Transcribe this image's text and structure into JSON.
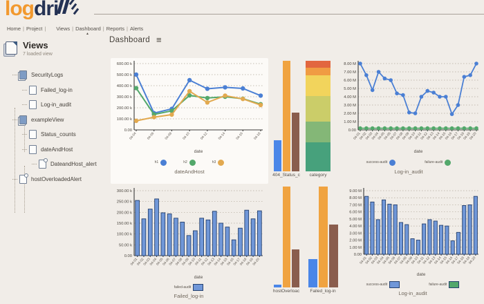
{
  "header": {
    "logo_log": "log",
    "logo_dri": "dri",
    "brand": "logdrill",
    "nav": [
      "Home",
      "Project",
      "Views",
      "Dashboard",
      "Reports",
      "Alerts"
    ],
    "active_nav": "Dashboard"
  },
  "sidebar": {
    "title": "Views",
    "subtitle": "7 loaded view",
    "items": [
      {
        "label": "SecurityLogs",
        "level": 1,
        "type": "view"
      },
      {
        "label": "Failed_log-in",
        "level": 2,
        "type": "doc"
      },
      {
        "label": "Log-in_audit",
        "level": 2,
        "type": "doc"
      },
      {
        "label": "exampleView",
        "level": 1,
        "type": "view"
      },
      {
        "label": "Status_counts",
        "level": 2,
        "type": "doc"
      },
      {
        "label": "dateAndHost",
        "level": 2,
        "type": "doc"
      },
      {
        "label": "DateandHost_alert",
        "level": 3,
        "type": "alert"
      },
      {
        "label": "hostOverloadedAlert",
        "level": 1,
        "type": "alert"
      }
    ]
  },
  "main": {
    "title": "Dashboard",
    "menu_glyph": "≡"
  },
  "colors": {
    "accent_orange": "#f2992e",
    "brand_navy": "#243254",
    "line_blue": "#4a7fd4",
    "line_green": "#53a86b",
    "line_orange": "#e2a94f",
    "bar_blue": "#7097d8",
    "bar_border": "#24406e",
    "mini_blue": "#4a86e8",
    "mini_orange": "#f0a340",
    "mini_brown": "#8a5d4d"
  },
  "chart_data": [
    {
      "id": "dateAndHost",
      "type": "line",
      "title": "dateAndHost",
      "xlabel": "date",
      "unit": "k",
      "ymax": 600,
      "y_tick_labels": [
        "600.00 k",
        "500.00 k",
        "400.00 k",
        "300.00 k",
        "200.00 k",
        "100.00 k",
        "0.00"
      ],
      "x": [
        "04-04",
        "04-06",
        "04-08",
        "04-10",
        "04-12",
        "04-14",
        "04-16",
        "04-18"
      ],
      "series": [
        {
          "name": "h1",
          "color": "#4a7fd4",
          "values": [
            500,
            152,
            190,
            450,
            372,
            385,
            375,
            310
          ]
        },
        {
          "name": "h2",
          "color": "#53a86b",
          "values": [
            378,
            140,
            172,
            312,
            288,
            300,
            282,
            232
          ]
        },
        {
          "name": "h3",
          "color": "#e2a94f",
          "values": [
            82,
            115,
            138,
            350,
            248,
            310,
            280,
            225
          ]
        }
      ],
      "legend": [
        {
          "label": "h1",
          "color": "#4a7fd4",
          "shape": "dot"
        },
        {
          "label": "h2",
          "color": "#53a86b",
          "shape": "dot"
        },
        {
          "label": "h3",
          "color": "#e2a94f",
          "shape": "dot"
        }
      ]
    },
    {
      "id": "status_404",
      "type": "mini-bar",
      "title": "404_Status_c",
      "values": [
        28,
        100,
        53
      ],
      "colors": [
        "#4a86e8",
        "#f0a340",
        "#8a5d4d"
      ]
    },
    {
      "id": "category",
      "type": "stacked",
      "title": "category",
      "segments": [
        {
          "color": "#e2663f",
          "value": 6
        },
        {
          "color": "#f09c43",
          "value": 7
        },
        {
          "color": "#f2d45c",
          "value": 19
        },
        {
          "color": "#cbcd69",
          "value": 23
        },
        {
          "color": "#84b777",
          "value": 19
        },
        {
          "color": "#47a17c",
          "value": 26
        }
      ]
    },
    {
      "id": "login_audit_line",
      "type": "line",
      "title": "Log-in_audit",
      "xlabel": "date",
      "unit": "M",
      "ymax": 8,
      "y_tick_labels": [
        "8.00 M",
        "7.00 M",
        "6.00 M",
        "5.00 M",
        "4.00 M",
        "3.00 M",
        "2.00 M",
        "1.00 M",
        "0.00"
      ],
      "x": [
        "04-01",
        "04-02",
        "04-03",
        "04-04",
        "04-05",
        "04-06",
        "04-07",
        "04-08",
        "04-09",
        "04-10",
        "04-11",
        "04-12",
        "04-13",
        "04-14",
        "04-15",
        "04-16",
        "04-17",
        "04-18",
        "04-19",
        "04-20"
      ],
      "series": [
        {
          "name": "success-audit",
          "color": "#4a7fd4",
          "values": [
            8.0,
            6.6,
            4.8,
            7.0,
            6.2,
            6.0,
            4.4,
            4.2,
            2.1,
            2.0,
            4.0,
            4.7,
            4.5,
            4.0,
            4.0,
            1.9,
            3.0,
            6.4,
            6.6,
            8.0
          ]
        },
        {
          "name": "failure-audit",
          "color": "#53a86b",
          "values": [
            0.2,
            0.2,
            0.2,
            0.2,
            0.2,
            0.2,
            0.2,
            0.2,
            0.2,
            0.2,
            0.2,
            0.2,
            0.2,
            0.2,
            0.2,
            0.2,
            0.2,
            0.2,
            0.2,
            0.2
          ]
        }
      ],
      "legend": [
        {
          "label": "success-audit",
          "color": "#4a7fd4",
          "shape": "dot"
        },
        {
          "label": "failure-audit",
          "color": "#53a86b",
          "shape": "dot"
        }
      ]
    },
    {
      "id": "failed_login_bars",
      "type": "bar",
      "title": "Failed_log-in",
      "xlabel": "date",
      "unit": "k",
      "ymax": 300,
      "y_tick_labels": [
        "300.00 k",
        "250.00 k",
        "200.00 k",
        "150.00 k",
        "100.00 k",
        "50.00 k",
        "0.00"
      ],
      "x": [
        "04-01",
        "04-02",
        "04-03",
        "04-04",
        "04-05",
        "04-06",
        "04-07",
        "04-08",
        "04-09",
        "04-10",
        "04-11",
        "04-12",
        "04-13",
        "04-14",
        "04-15",
        "04-16",
        "04-17",
        "04-18",
        "04-19",
        "04-20"
      ],
      "series": [
        {
          "name": "failed-audit",
          "color": "#7097d8",
          "values": [
            255,
            170,
            215,
            262,
            198,
            193,
            173,
            155,
            93,
            115,
            173,
            165,
            205,
            150,
            132,
            73,
            127,
            210,
            170,
            207
          ]
        }
      ],
      "legend": [
        {
          "label": "failed-audit",
          "color": "#7097d8",
          "shape": "rect"
        }
      ]
    },
    {
      "id": "host_overloaded_mini",
      "type": "mini-bar",
      "title": "hostOverloac",
      "values": [
        3,
        100,
        38
      ],
      "colors": [
        "#4a86e8",
        "#f0a340",
        "#8a5d4d"
      ]
    },
    {
      "id": "failed_login_mini",
      "type": "mini-bar",
      "title": "Failed_log-in",
      "values": [
        28,
        100,
        62
      ],
      "colors": [
        "#4a86e8",
        "#f0a340",
        "#8a5d4d"
      ]
    },
    {
      "id": "login_audit_bars",
      "type": "bar",
      "title": "Log-in_audit",
      "xlabel": "date",
      "unit": "M",
      "ymax": 9,
      "y_tick_labels": [
        "9.00 M",
        "8.00 M",
        "7.00 M",
        "6.00 M",
        "5.00 M",
        "4.00 M",
        "3.00 M",
        "2.00 M",
        "1.00 M",
        "0.00"
      ],
      "x": [
        "04-01",
        "04-02",
        "04-03",
        "04-04",
        "04-05",
        "04-06",
        "04-07",
        "04-08",
        "04-09",
        "04-10",
        "04-11",
        "04-12",
        "04-13",
        "04-14",
        "04-15",
        "04-16",
        "04-17",
        "04-18",
        "04-19",
        "04-20"
      ],
      "series": [
        {
          "name": "success-audit",
          "color": "#7097d8",
          "values": [
            8.2,
            7.4,
            4.9,
            7.7,
            7.1,
            7.0,
            4.5,
            4.2,
            2.2,
            2.0,
            4.3,
            4.9,
            4.7,
            4.1,
            4.0,
            1.9,
            3.1,
            6.9,
            7.0,
            8.2
          ]
        }
      ],
      "legend": [
        {
          "label": "success-audit",
          "color": "#7097d8",
          "shape": "rect"
        },
        {
          "label": "failure-audit",
          "color": "#53a86b",
          "shape": "rect"
        }
      ]
    }
  ]
}
